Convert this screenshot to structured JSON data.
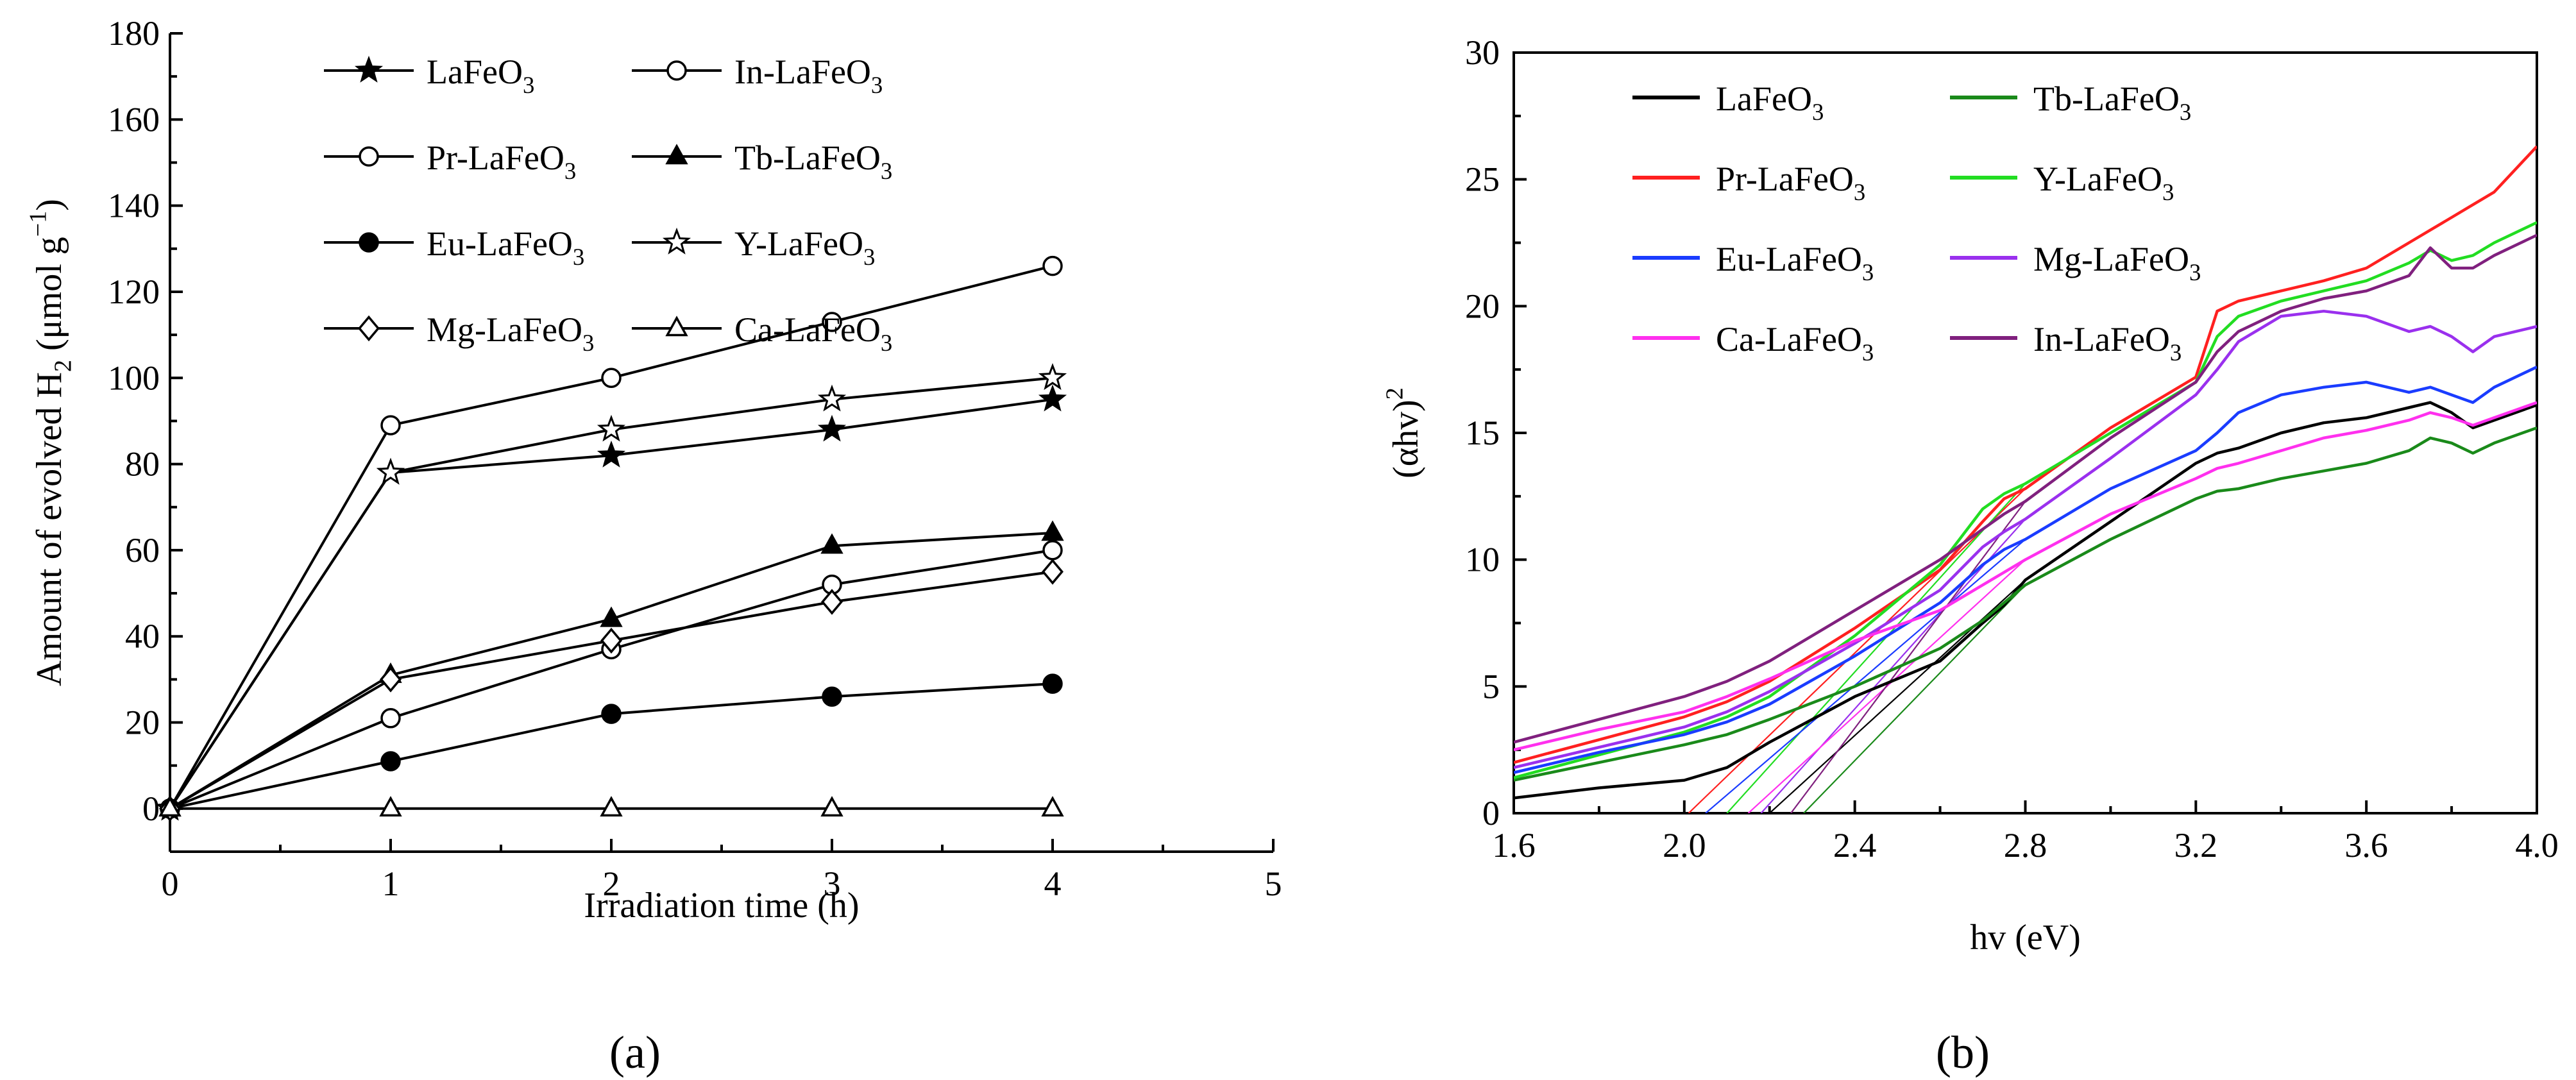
{
  "chart_data": [
    {
      "panel": "a",
      "panel_label": "(a)",
      "type": "line",
      "xlabel": "Irradiation time (h)",
      "ylabel": "Amount of evolved H₂ (μmol g⁻¹)",
      "xlim": [
        0,
        5
      ],
      "ylim": [
        -10,
        180
      ],
      "xticks": [
        "0",
        "1",
        "2",
        "3",
        "4",
        "5"
      ],
      "yticks": [
        "0",
        "20",
        "40",
        "60",
        "80",
        "100",
        "120",
        "140",
        "160",
        "180"
      ],
      "x": [
        0,
        1,
        2,
        3,
        4
      ],
      "series": [
        {
          "name": "LaFeO₃",
          "marker": "star-filled",
          "values": [
            0,
            78,
            82,
            88,
            95
          ]
        },
        {
          "name": "In-LaFeO₃",
          "marker": "circle-open",
          "values": [
            0,
            21,
            37,
            52,
            60
          ]
        },
        {
          "name": "Pr-LaFeO₃",
          "marker": "circle-open",
          "values": [
            0,
            89,
            100,
            113,
            126
          ]
        },
        {
          "name": "Tb-LaFeO₃",
          "marker": "triangle-filled",
          "values": [
            0,
            31,
            44,
            61,
            64
          ]
        },
        {
          "name": "Eu-LaFeO₃",
          "marker": "circle-filled",
          "values": [
            0,
            11,
            22,
            26,
            29
          ]
        },
        {
          "name": "Y-LaFeO₃",
          "marker": "star-open",
          "values": [
            0,
            78,
            88,
            95,
            100
          ]
        },
        {
          "name": "Mg-LaFeO₃",
          "marker": "diamond-open",
          "values": [
            0,
            30,
            39,
            48,
            55
          ]
        },
        {
          "name": "Ca-LaFeO₃",
          "marker": "triangle-open",
          "values": [
            0,
            0,
            0,
            0,
            0
          ]
        }
      ],
      "legend": "top (two columns)"
    },
    {
      "panel": "b",
      "panel_label": "(b)",
      "type": "line",
      "xlabel": "hv (eV)",
      "ylabel": "(αhv)²",
      "xlim": [
        1.6,
        4.0
      ],
      "ylim": [
        0,
        30
      ],
      "xticks": [
        "1.6",
        "2.0",
        "2.4",
        "2.8",
        "3.2",
        "3.6",
        "4.0"
      ],
      "yticks": [
        "0",
        "5",
        "10",
        "15",
        "20",
        "25",
        "30"
      ],
      "x": [
        1.6,
        1.8,
        2.0,
        2.1,
        2.2,
        2.4,
        2.6,
        2.7,
        2.75,
        2.8,
        3.0,
        3.2,
        3.25,
        3.3,
        3.4,
        3.5,
        3.6,
        3.7,
        3.75,
        3.8,
        3.85,
        3.9,
        4.0
      ],
      "series": [
        {
          "name": "LaFeO₃",
          "color": "#000000",
          "tangent_x0": 2.2,
          "values": [
            0.6,
            1.0,
            1.3,
            1.8,
            2.8,
            4.6,
            6.0,
            7.5,
            8.2,
            9.2,
            11.5,
            13.8,
            14.2,
            14.4,
            15.0,
            15.4,
            15.6,
            16.0,
            16.2,
            15.8,
            15.2,
            15.5,
            16.1
          ]
        },
        {
          "name": "Tb-LaFeO₃",
          "color": "#1a8a1a",
          "tangent_x0": 2.28,
          "values": [
            1.3,
            2.0,
            2.7,
            3.1,
            3.7,
            5.0,
            6.5,
            7.6,
            8.3,
            9.0,
            10.8,
            12.4,
            12.7,
            12.8,
            13.2,
            13.5,
            13.8,
            14.3,
            14.8,
            14.6,
            14.2,
            14.6,
            15.2
          ]
        },
        {
          "name": "Pr-LaFeO₃",
          "color": "#ff2020",
          "tangent_x0": 2.01,
          "values": [
            2.0,
            2.9,
            3.8,
            4.4,
            5.2,
            7.3,
            9.6,
            11.5,
            12.4,
            12.8,
            15.2,
            17.2,
            19.8,
            20.2,
            20.6,
            21.0,
            21.5,
            22.5,
            23.0,
            23.5,
            24.0,
            24.5,
            26.3
          ]
        },
        {
          "name": "Y-LaFeO₃",
          "color": "#22dd22",
          "tangent_x0": 2.1,
          "values": [
            1.4,
            2.3,
            3.2,
            3.8,
            4.6,
            7.0,
            9.8,
            12.0,
            12.6,
            13.0,
            15.0,
            17.0,
            18.8,
            19.6,
            20.2,
            20.6,
            21.0,
            21.7,
            22.2,
            21.8,
            22.0,
            22.5,
            23.3
          ]
        },
        {
          "name": "Eu-LaFeO₃",
          "color": "#1a3cff",
          "tangent_x0": 2.05,
          "values": [
            1.6,
            2.4,
            3.1,
            3.6,
            4.3,
            6.2,
            8.3,
            9.8,
            10.4,
            10.8,
            12.8,
            14.3,
            15.0,
            15.8,
            16.5,
            16.8,
            17.0,
            16.6,
            16.8,
            16.5,
            16.2,
            16.8,
            17.6
          ]
        },
        {
          "name": "Mg-LaFeO₃",
          "color": "#9a30ee",
          "tangent_x0": 2.18,
          "values": [
            1.8,
            2.6,
            3.4,
            4.0,
            4.8,
            6.7,
            8.8,
            10.5,
            11.1,
            11.6,
            14.0,
            16.5,
            17.5,
            18.6,
            19.6,
            19.8,
            19.6,
            19.0,
            19.2,
            18.8,
            18.2,
            18.8,
            19.2
          ]
        },
        {
          "name": "Ca-LaFeO₃",
          "color": "#ff30ee",
          "tangent_x0": 2.15,
          "values": [
            2.5,
            3.3,
            4.0,
            4.6,
            5.3,
            6.8,
            8.0,
            9.0,
            9.5,
            10.0,
            11.8,
            13.2,
            13.6,
            13.8,
            14.3,
            14.8,
            15.1,
            15.5,
            15.8,
            15.6,
            15.3,
            15.6,
            16.2
          ]
        },
        {
          "name": "In-LaFeO₃",
          "color": "#80207e",
          "tangent_x0": 2.25,
          "values": [
            2.8,
            3.7,
            4.6,
            5.2,
            6.0,
            8.0,
            10.0,
            11.2,
            11.8,
            12.3,
            14.8,
            17.0,
            18.2,
            19.0,
            19.8,
            20.3,
            20.6,
            21.2,
            22.3,
            21.5,
            21.5,
            22.0,
            22.8
          ]
        }
      ],
      "legend": "top-left (two columns)"
    }
  ]
}
